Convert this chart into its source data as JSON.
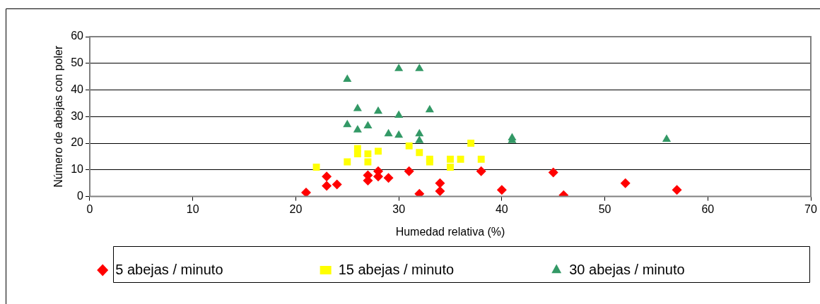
{
  "chart_data": {
    "type": "scatter",
    "xlabel": "Humedad relativa (%)",
    "ylabel": "Número de abejas con poler",
    "xlim": [
      0,
      70
    ],
    "xticks": [
      0,
      10,
      20,
      30,
      40,
      50,
      60,
      70
    ],
    "ylim": [
      0,
      60
    ],
    "yticks": [
      0,
      10,
      20,
      30,
      40,
      50,
      60
    ],
    "grid": "y",
    "legend": "bottom",
    "series": [
      {
        "name": "5 abejas / minuto",
        "color": "#ff0000",
        "marker": "diamond",
        "x": [
          21,
          23,
          23,
          24,
          27,
          27,
          28,
          28,
          29,
          31,
          32,
          34,
          34,
          38,
          40,
          45,
          46,
          52,
          57
        ],
        "values": [
          1.5,
          7.5,
          4,
          4.5,
          8,
          6,
          9.5,
          7.5,
          7,
          9.5,
          1,
          5,
          2,
          9.5,
          2.5,
          9,
          0.5,
          5,
          2.5
        ]
      },
      {
        "name": "15 abejas / minuto",
        "color": "#ffff00",
        "marker": "square",
        "x": [
          22,
          25,
          26,
          26,
          27,
          27,
          28,
          31,
          32,
          33,
          33,
          35,
          35,
          36,
          37,
          38
        ],
        "values": [
          11,
          13,
          18,
          16,
          16,
          13,
          17,
          19,
          16.5,
          13,
          14,
          11,
          14,
          14,
          20,
          14
        ]
      },
      {
        "name": "30 abejas / minuto",
        "color": "#339966",
        "marker": "triangle",
        "x": [
          25,
          25,
          26,
          26,
          27,
          28,
          29,
          30,
          30,
          30,
          32,
          32,
          32,
          33,
          41,
          41,
          56
        ],
        "values": [
          44,
          27,
          33,
          25,
          26.5,
          32,
          23.5,
          48,
          30.5,
          23,
          48,
          23.5,
          21,
          32.5,
          22,
          21,
          21.5
        ]
      }
    ]
  }
}
